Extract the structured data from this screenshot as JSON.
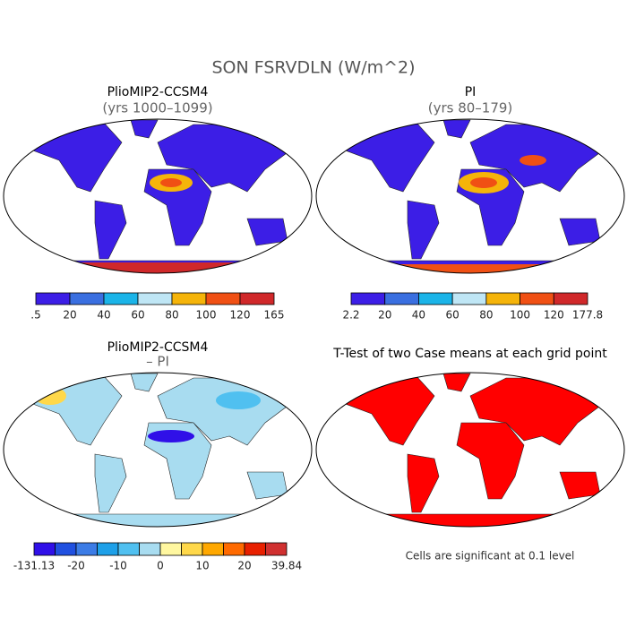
{
  "title": "SON FSRVDLN (W/m^2)",
  "panels": [
    {
      "title": "PlioMIP2-CCSM4",
      "subtitle": "(yrs 1000–1099)",
      "colorbar": {
        "colors": [
          "#3c1ee6",
          "#3a6fe0",
          "#1bb4e8",
          "#bfe6f5",
          "#f5b40a",
          "#f05014",
          "#d0282a"
        ],
        "labels": [
          ".5",
          "20",
          "40",
          "60",
          "80",
          "100",
          "120",
          "165"
        ]
      }
    },
    {
      "title": "PI",
      "subtitle": "(yrs 80–179)",
      "colorbar": {
        "colors": [
          "#3c1ee6",
          "#3a6fe0",
          "#1bb4e8",
          "#bfe6f5",
          "#f5b40a",
          "#f05014",
          "#d0282a"
        ],
        "labels": [
          "2.2",
          "20",
          "40",
          "60",
          "80",
          "100",
          "120",
          "177.8"
        ]
      }
    },
    {
      "title": "PlioMIP2-CCSM4",
      "subtitle": "– PI",
      "colorbar": {
        "colors": [
          "#3010e8",
          "#2050e0",
          "#3c7ce6",
          "#1ea0e8",
          "#50c0f0",
          "#a8dcf0",
          "#fff7a0",
          "#ffd84a",
          "#ffa800",
          "#ff6a00",
          "#e82000",
          "#d03030"
        ],
        "labels": [
          "-131.13",
          "-20",
          "-10",
          "0",
          "10",
          "20",
          "39.84"
        ]
      }
    },
    {
      "title": "T-Test of two Case means at each grid point",
      "note": "Cells are significant at 0.1 level"
    }
  ]
}
